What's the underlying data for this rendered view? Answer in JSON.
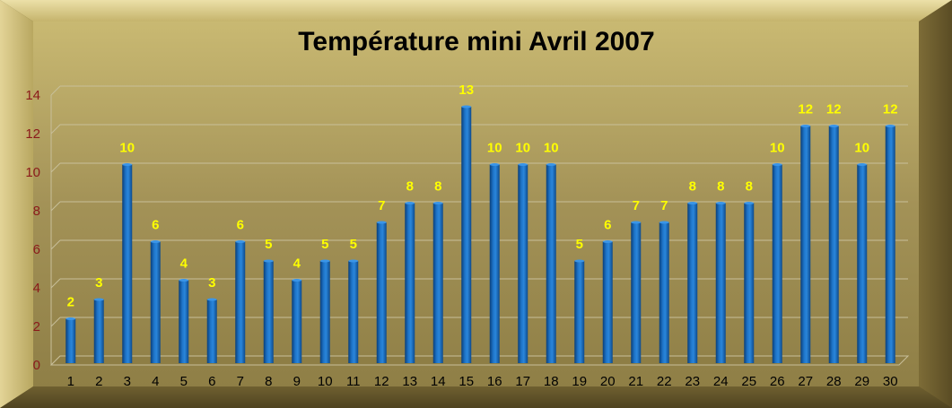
{
  "chart_data": {
    "type": "bar",
    "title": "Température mini Avril 2007",
    "xlabel": "",
    "ylabel": "",
    "categories": [
      "1",
      "2",
      "3",
      "4",
      "5",
      "6",
      "7",
      "8",
      "9",
      "10",
      "11",
      "12",
      "13",
      "14",
      "15",
      "16",
      "17",
      "18",
      "19",
      "20",
      "21",
      "22",
      "23",
      "24",
      "25",
      "26",
      "27",
      "28",
      "29",
      "30"
    ],
    "values": [
      2,
      3,
      10,
      6,
      4,
      3,
      6,
      5,
      4,
      5,
      5,
      7,
      8,
      8,
      13,
      10,
      10,
      10,
      5,
      6,
      7,
      7,
      8,
      8,
      8,
      10,
      12,
      12,
      10,
      12
    ],
    "ylim": [
      0,
      14
    ],
    "yticks": [
      0,
      2,
      4,
      6,
      8,
      10,
      12,
      14
    ],
    "grid": true,
    "legend": "none",
    "data_labels": true
  },
  "colors": {
    "background": "#a8965a",
    "bar": "#1565b5",
    "data_label": "#ffff00",
    "ytick_label": "#8b1a1a",
    "gridline": "#c8bf9a"
  }
}
